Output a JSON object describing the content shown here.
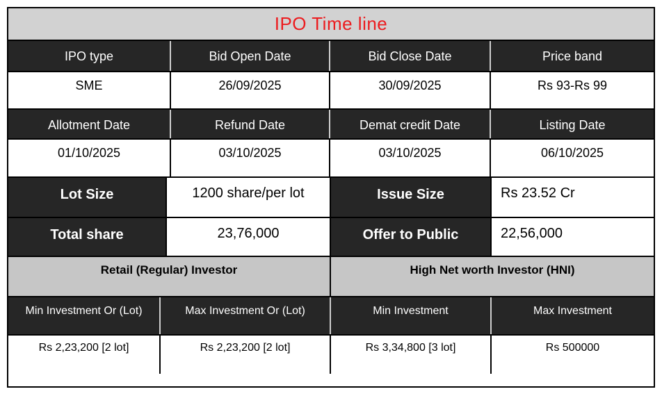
{
  "title": {
    "text": "IPO Time line"
  },
  "colors": {
    "title_text": "#ec1c1f",
    "title_bg": "#d2d2d2",
    "dark_cell_bg": "#262626",
    "dark_cell_text": "#ffffff",
    "gray_band_bg": "#c6c6c6",
    "border": "#000000"
  },
  "timeline": {
    "header_row1": [
      "IPO type",
      "Bid Open Date",
      "Bid Close Date",
      "Price band"
    ],
    "value_row1": [
      "SME",
      "26/09/2025",
      "30/09/2025",
      "Rs 93-Rs 99"
    ],
    "header_row2": [
      "Allotment Date",
      "Refund Date",
      "Demat credit Date",
      "Listing Date"
    ],
    "value_row2": [
      "01/10/2025",
      "03/10/2025",
      "03/10/2025",
      "06/10/2025"
    ]
  },
  "details": {
    "rows": [
      {
        "label1": "Lot Size",
        "value1": "1200 share/per lot",
        "label2": "Issue Size",
        "value2": "Rs 23.52 Cr"
      },
      {
        "label1": "Total share",
        "value1": "23,76,000",
        "label2": "Offer to Public",
        "value2": "22,56,000"
      }
    ]
  },
  "investors": {
    "groups": [
      "Retail (Regular) Investor",
      "High Net worth Investor (HNI)"
    ],
    "headers": [
      "Min Investment Or (Lot)",
      "Max Investment Or (Lot)",
      "Min Investment",
      "Max Investment"
    ],
    "values": [
      "Rs 2,23,200 [2 lot]",
      "Rs 2,23,200 [2 lot]",
      "Rs 3,34,800 [3 lot]",
      "Rs 500000"
    ]
  }
}
